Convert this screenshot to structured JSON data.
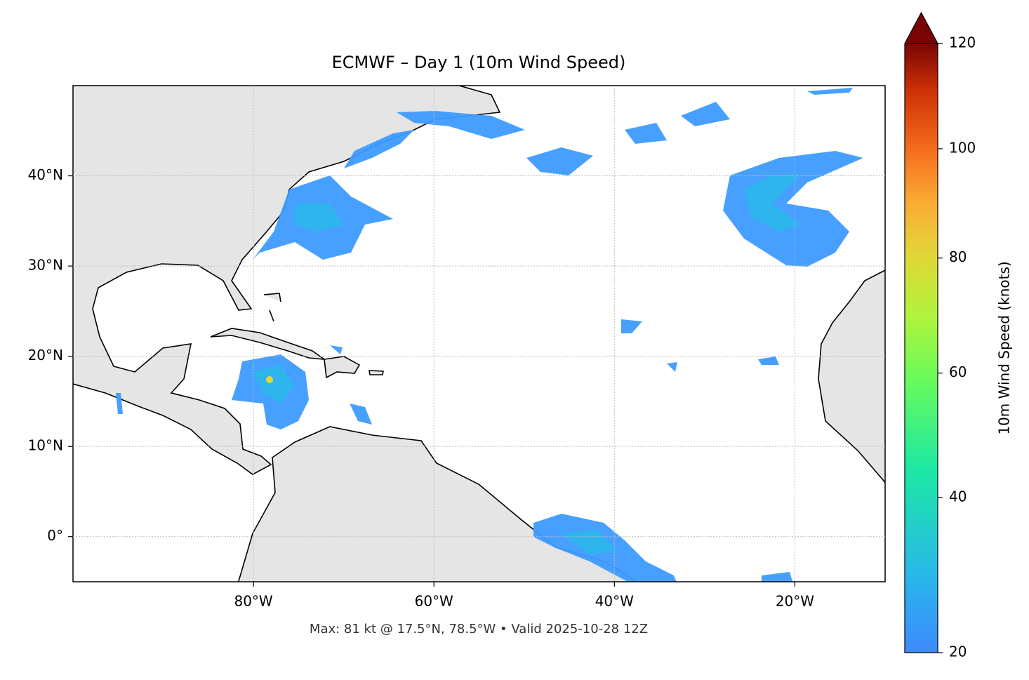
{
  "map": {
    "title": "ECMWF – Day 1 (10m Wind Speed)",
    "footer": "Max: 81 kt @ 17.5°N, 78.5°W • Valid 2025-10-28 12Z",
    "xlim": [
      -100,
      -10
    ],
    "ylim": [
      -5,
      50
    ],
    "xticks": [
      {
        "value": -80,
        "label": "80°W"
      },
      {
        "value": -60,
        "label": "60°W"
      },
      {
        "value": -40,
        "label": "40°W"
      },
      {
        "value": -20,
        "label": "20°W"
      }
    ],
    "yticks": [
      {
        "value": 0,
        "label": "0°"
      },
      {
        "value": 10,
        "label": "10°N"
      },
      {
        "value": 20,
        "label": "20°N"
      },
      {
        "value": 30,
        "label": "30°N"
      },
      {
        "value": 40,
        "label": "40°N"
      }
    ],
    "grid": true,
    "colorbar": {
      "label": "10m Wind Speed (knots)",
      "lim": [
        20,
        120
      ],
      "ticks": [
        20,
        40,
        60,
        80,
        100,
        120
      ],
      "norm": "power",
      "gamma": 0.85
    }
  }
}
